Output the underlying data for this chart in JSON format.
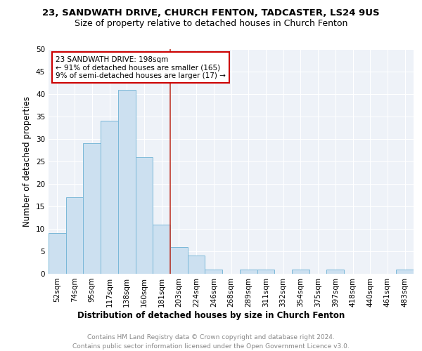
{
  "title_line1": "23, SANDWATH DRIVE, CHURCH FENTON, TADCASTER, LS24 9US",
  "title_line2": "Size of property relative to detached houses in Church Fenton",
  "xlabel": "Distribution of detached houses by size in Church Fenton",
  "ylabel": "Number of detached properties",
  "bin_labels": [
    "52sqm",
    "74sqm",
    "95sqm",
    "117sqm",
    "138sqm",
    "160sqm",
    "181sqm",
    "203sqm",
    "224sqm",
    "246sqm",
    "268sqm",
    "289sqm",
    "311sqm",
    "332sqm",
    "354sqm",
    "375sqm",
    "397sqm",
    "418sqm",
    "440sqm",
    "461sqm",
    "483sqm"
  ],
  "values": [
    9,
    17,
    29,
    34,
    41,
    26,
    11,
    6,
    4,
    1,
    0,
    1,
    1,
    0,
    1,
    0,
    1,
    0,
    0,
    0,
    1
  ],
  "bar_color": "#cce0f0",
  "bar_edge_color": "#7ab8d8",
  "vline_color": "#c0392b",
  "annotation_text": "23 SANDWATH DRIVE: 198sqm\n← 91% of detached houses are smaller (165)\n9% of semi-detached houses are larger (17) →",
  "annotation_box_color": "#ffffff",
  "annotation_box_edge": "#cc0000",
  "ylim": [
    0,
    50
  ],
  "yticks": [
    0,
    5,
    10,
    15,
    20,
    25,
    30,
    35,
    40,
    45,
    50
  ],
  "background_color": "#eef2f8",
  "footer_line1": "Contains HM Land Registry data © Crown copyright and database right 2024.",
  "footer_line2": "Contains public sector information licensed under the Open Government Licence v3.0.",
  "title_fontsize": 9.5,
  "subtitle_fontsize": 9,
  "axis_label_fontsize": 8.5,
  "tick_fontsize": 7.5,
  "footer_fontsize": 6.5,
  "annotation_fontsize": 7.5
}
